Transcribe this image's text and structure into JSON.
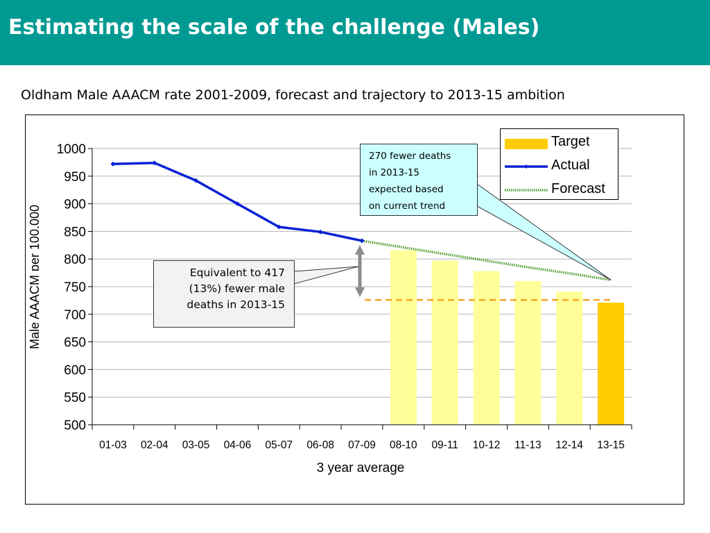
{
  "header": {
    "title": "Estimating the scale of the challenge (Males)"
  },
  "subtitle": "Oldham Male AAACM rate 2001-2009, forecast and trajectory to 2013-15 ambition",
  "callouts": {
    "left_lines": [
      "Equivalent to 417",
      "(13%) fewer male",
      "deaths in 2013-15"
    ],
    "right_lines": [
      "270 fewer deaths",
      "in 2013-15",
      "expected based",
      "on current trend"
    ]
  },
  "colors": {
    "title_bar": "#009a93",
    "actual": "#0a22d6",
    "forecast": "#4c9a2a",
    "target_light": "#ffff99",
    "target_final": "#ffcc00",
    "ambition_line": "#f5a623",
    "arrow": "#8c8c8c",
    "callout_left_bg": "#f2f2f2",
    "callout_right_bg": "#ccffff"
  },
  "chart_data": {
    "type": "bar",
    "xlabel": "3 year average",
    "ylabel": "Male AAACM per 100,000",
    "ylim": [
      500,
      1000
    ],
    "yticks": [
      500,
      550,
      600,
      650,
      700,
      750,
      800,
      850,
      900,
      950,
      1000
    ],
    "categories": [
      "01-03",
      "02-04",
      "03-05",
      "04-06",
      "05-07",
      "06-08",
      "07-09",
      "08-10",
      "09-11",
      "10-12",
      "11-13",
      "12-14",
      "13-15"
    ],
    "legend_position": "top-right",
    "grid": true,
    "series": [
      {
        "name": "Target",
        "kind": "bar",
        "values": [
          null,
          null,
          null,
          null,
          null,
          null,
          null,
          816,
          797,
          778,
          760,
          741,
          721
        ]
      },
      {
        "name": "Actual",
        "kind": "line",
        "values": [
          972,
          974,
          942,
          900,
          858,
          849,
          833,
          null,
          null,
          null,
          null,
          null,
          null
        ]
      },
      {
        "name": "Forecast",
        "kind": "line",
        "values": [
          null,
          null,
          null,
          null,
          null,
          null,
          833,
          821,
          809,
          797,
          785,
          774,
          762
        ]
      }
    ],
    "ambition_level": 726
  }
}
